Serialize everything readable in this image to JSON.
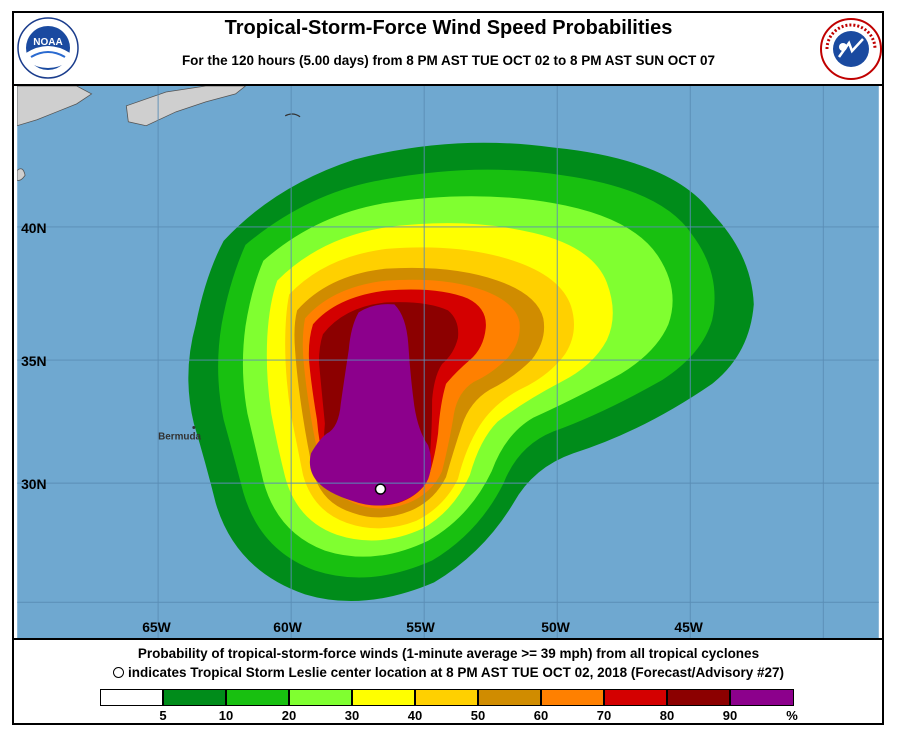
{
  "title": "Tropical-Storm-Force Wind Speed Probabilities",
  "subtitle": "For the 120 hours (5.00 days) from 8 PM AST TUE OCT 02 to 8 PM AST SUN OCT 07",
  "logos": {
    "left": "noaa-logo",
    "left_text": "NOAA",
    "right": "nws-logo",
    "right_text": "NATIONAL WEATHER SERVICE"
  },
  "map": {
    "lat_labels": [
      "40N",
      "35N",
      "30N"
    ],
    "lon_labels": [
      "65W",
      "60W",
      "55W",
      "50W",
      "45W"
    ],
    "place_labels": [
      "Bermuda"
    ],
    "storm_center": {
      "lat": 29.8,
      "lon": 56.6
    },
    "colors": {
      "ocean": "#6fa8d0",
      "land": "#cfcfcf",
      "grid": "#5a8db5"
    }
  },
  "caption": {
    "line1": "Probability of tropical-storm-force winds (1-minute average >= 39 mph) from all tropical cyclones",
    "line2": "indicates Tropical Storm Leslie center location at 8 PM AST TUE OCT 02, 2018 (Forecast/Advisory #27)"
  },
  "legend": {
    "colors": [
      "#ffffff",
      "#008c1a",
      "#18c010",
      "#80ff30",
      "#ffff00",
      "#ffd000",
      "#d08c00",
      "#ff8000",
      "#d40000",
      "#8c0000",
      "#8c008c"
    ],
    "ticks": [
      "5",
      "10",
      "20",
      "30",
      "40",
      "50",
      "60",
      "70",
      "80",
      "90",
      "%"
    ]
  }
}
